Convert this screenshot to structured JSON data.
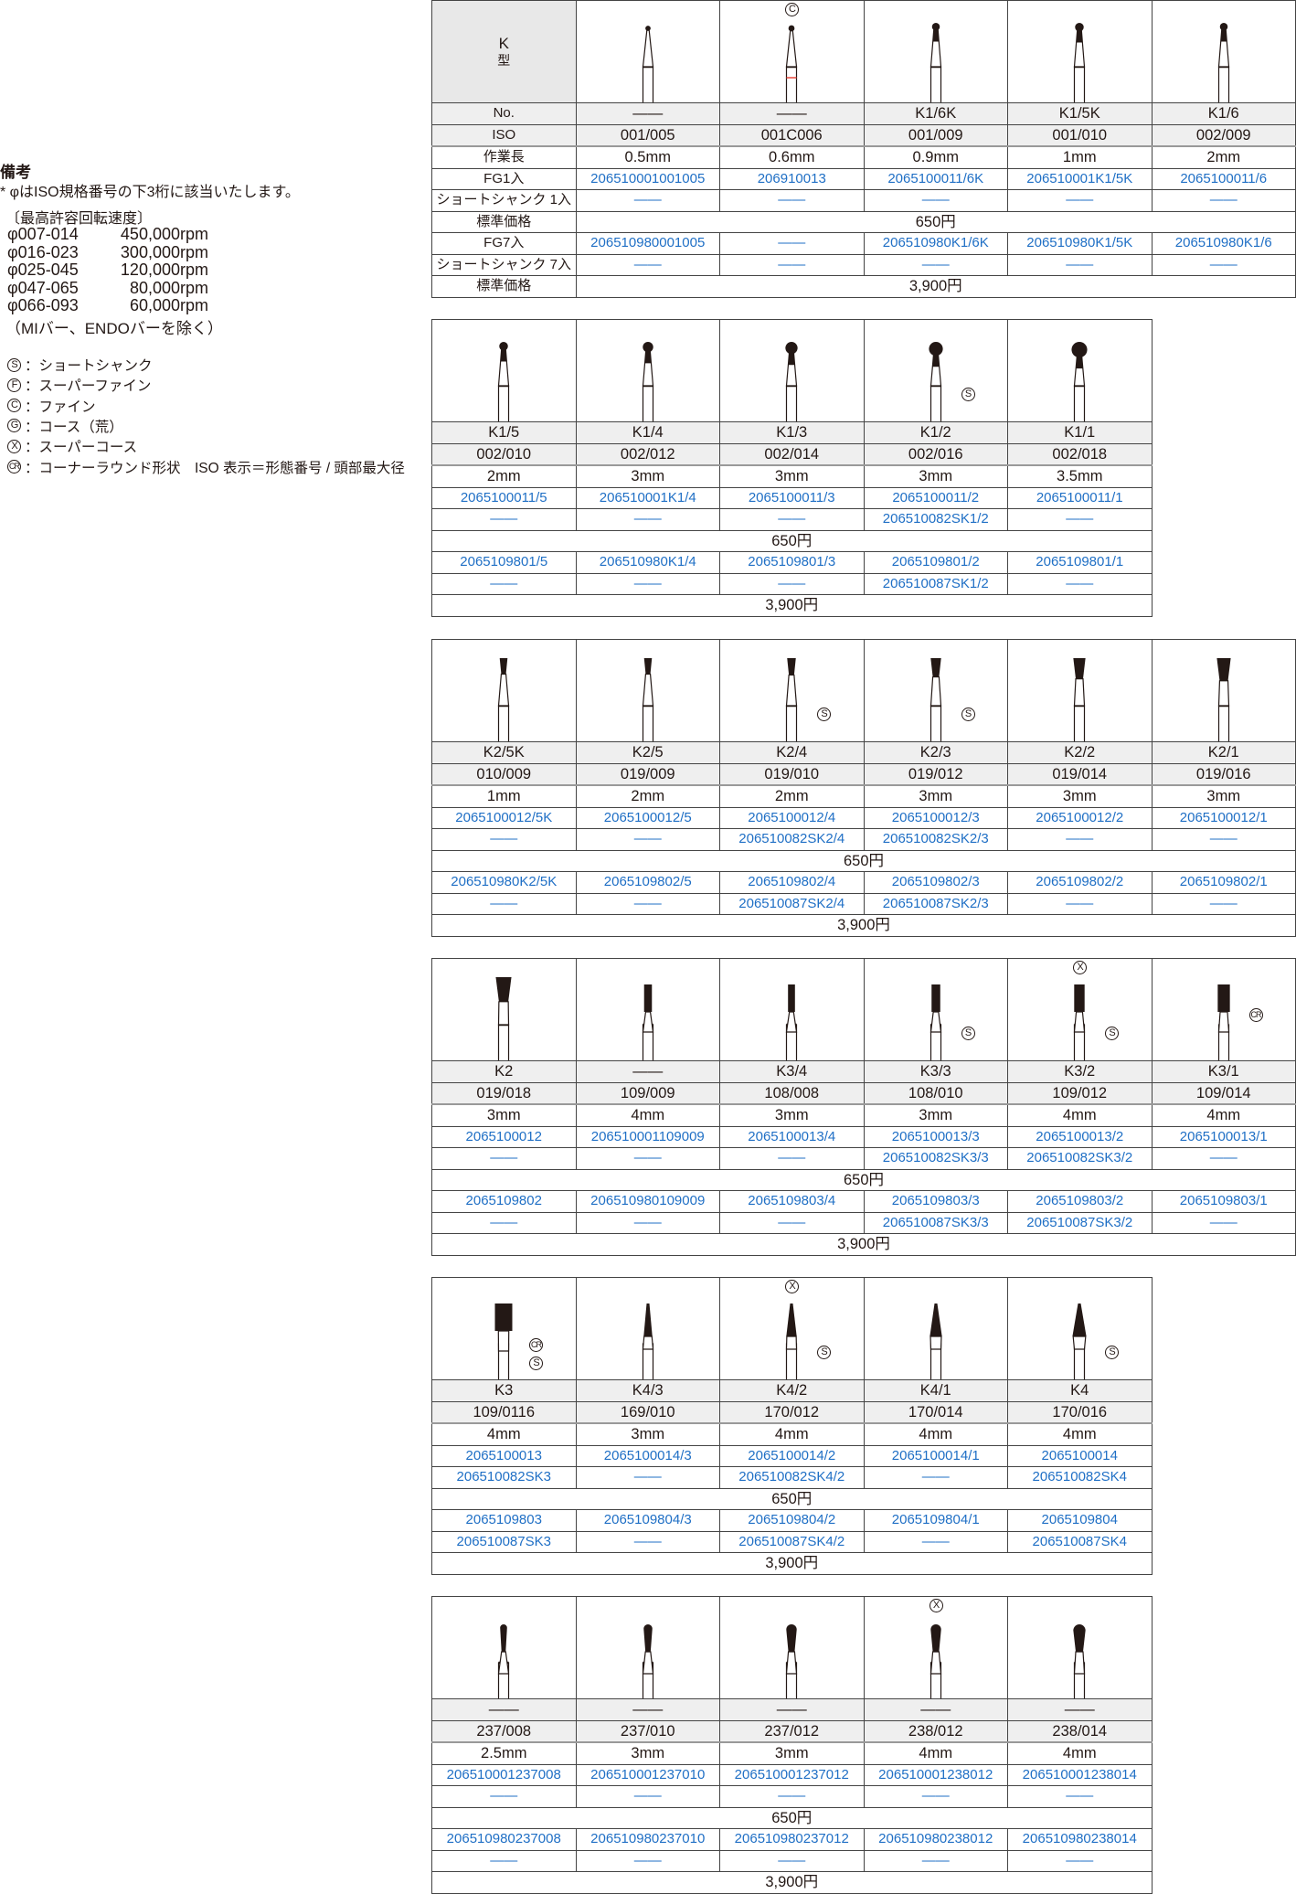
{
  "notes": {
    "title": "備考",
    "star_note": "* φはISO規格番号の下3桁に該当いたします。",
    "speed_heading": "〔最高許容回転速度〕",
    "speeds": [
      {
        "range": "φ007-014",
        "rpm": "450,000rpm"
      },
      {
        "range": "φ016-023",
        "rpm": "300,000rpm"
      },
      {
        "range": "φ025-045",
        "rpm": "120,000rpm"
      },
      {
        "range": "φ047-065",
        "rpm": "80,000rpm"
      },
      {
        "range": "φ066-093",
        "rpm": "60,000rpm"
      }
    ],
    "exclusion": "（MIバー、ENDOバーを除く）",
    "legend": [
      {
        "mark": "S",
        "text": "：ショートシャンク"
      },
      {
        "mark": "F",
        "text": "：スーパーファイン"
      },
      {
        "mark": "C",
        "text": "：ファイン"
      },
      {
        "mark": "G",
        "text": "：コース（荒）"
      },
      {
        "mark": "X",
        "text": "：スーパーコース"
      },
      {
        "mark": "CR",
        "text": "：コーナーラウンド形状　ISO 表示＝形態番号 / 頭部最大径"
      }
    ]
  },
  "colors": {
    "code_blue": "#1f6fc5",
    "header_gray": "#efefef",
    "grid": "#444444",
    "band_red": "#e8473c"
  },
  "row_labels": {
    "type_letter": "K",
    "type_suffix": "型",
    "no": "No.",
    "iso": "ISO",
    "length": "作業長",
    "fg1": "FG1入",
    "short1": "ショートシャンク 1入",
    "price1": "標準価格",
    "fg7": "FG7入",
    "short7": "ショートシャンク 7入",
    "price7": "標準価格"
  },
  "tables": [
    {
      "price1": "650円",
      "price7": "3,900円",
      "columns": [
        {
          "shape": "taper-point-bur-icon",
          "no": "——",
          "iso": "001/005",
          "length": "0.5mm",
          "fg1": "206510001001005",
          "short1": "——",
          "fg7": "206510980001005",
          "short7": "——"
        },
        {
          "shape": "taper-point-bur-icon",
          "red_band": true,
          "top_mark": "C",
          "no": "——",
          "iso": "001C006",
          "length": "0.6mm",
          "fg1": "206910013",
          "short1": "——",
          "fg7": "——",
          "short7": "——"
        },
        {
          "shape": "round-bur-icon",
          "no": "K1/6K",
          "iso": "001/009",
          "length": "0.9mm",
          "fg1": "2065100011/6K",
          "short1": "——",
          "fg7": "206510980K1/6K",
          "short7": "——"
        },
        {
          "shape": "round-bur-icon",
          "no": "K1/5K",
          "iso": "001/010",
          "length": "1mm",
          "fg1": "206510001K1/5K",
          "short1": "——",
          "fg7": "206510980K1/5K",
          "short7": "——"
        },
        {
          "shape": "round-bur-icon",
          "no": "K1/6",
          "iso": "002/009",
          "length": "2mm",
          "fg1": "2065100011/6",
          "short1": "——",
          "fg7": "206510980K1/6",
          "short7": "——"
        }
      ]
    },
    {
      "price1": "650円",
      "price7": "3,900円",
      "columns": [
        {
          "shape": "round-bur-icon",
          "no": "K1/5",
          "iso": "002/010",
          "length": "2mm",
          "fg1": "2065100011/5",
          "short1": "——",
          "fg7": "2065109801/5",
          "short7": "——"
        },
        {
          "shape": "round-bur-icon",
          "no": "K1/4",
          "iso": "002/012",
          "length": "3mm",
          "fg1": "206510001K1/4",
          "short1": "——",
          "fg7": "206510980K1/4",
          "short7": "——"
        },
        {
          "shape": "round-bur-icon",
          "no": "K1/3",
          "iso": "002/014",
          "length": "3mm",
          "fg1": "2065100011/3",
          "short1": "——",
          "fg7": "2065109801/3",
          "short7": "——"
        },
        {
          "shape": "round-bur-icon",
          "side_marks": [
            "S"
          ],
          "no": "K1/2",
          "iso": "002/016",
          "length": "3mm",
          "fg1": "2065100011/2",
          "short1": "206510082SK1/2",
          "fg7": "2065109801/2",
          "short7": "206510087SK1/2"
        },
        {
          "shape": "round-bur-icon",
          "no": "K1/1",
          "iso": "002/018",
          "length": "3.5mm",
          "fg1": "2065100011/1",
          "short1": "——",
          "fg7": "2065109801/1",
          "short7": "——"
        }
      ]
    },
    {
      "price1": "650円",
      "price7": "3,900円",
      "columns": [
        {
          "shape": "inverted-cone-bur-icon",
          "no": "K2/5K",
          "iso": "010/009",
          "length": "1mm",
          "fg1": "2065100012/5K",
          "short1": "——",
          "fg7": "206510980K2/5K",
          "short7": "——"
        },
        {
          "shape": "inverted-cone-bur-icon",
          "no": "K2/5",
          "iso": "019/009",
          "length": "2mm",
          "fg1": "2065100012/5",
          "short1": "——",
          "fg7": "2065109802/5",
          "short7": "——"
        },
        {
          "shape": "inverted-cone-bur-icon",
          "side_marks": [
            "S"
          ],
          "no": "K2/4",
          "iso": "019/010",
          "length": "2mm",
          "fg1": "2065100012/4",
          "short1": "206510082SK2/4",
          "fg7": "2065109802/4",
          "short7": "206510087SK2/4"
        },
        {
          "shape": "inverted-cone-bur-icon",
          "side_marks": [
            "S"
          ],
          "no": "K2/3",
          "iso": "019/012",
          "length": "3mm",
          "fg1": "2065100012/3",
          "short1": "206510082SK2/3",
          "fg7": "2065109802/3",
          "short7": "206510087SK2/3"
        },
        {
          "shape": "inverted-cone-bur-icon",
          "no": "K2/2",
          "iso": "019/014",
          "length": "3mm",
          "fg1": "2065100012/2",
          "short1": "——",
          "fg7": "2065109802/2",
          "short7": "——"
        },
        {
          "shape": "inverted-cone-bur-icon",
          "no": "K2/1",
          "iso": "019/016",
          "length": "3mm",
          "fg1": "2065100012/1",
          "short1": "——",
          "fg7": "2065109802/1",
          "short7": "——"
        }
      ]
    },
    {
      "price1": "650円",
      "price7": "3,900円",
      "columns": [
        {
          "shape": "inverted-cone-bur-icon",
          "no": "K2",
          "iso": "019/018",
          "length": "3mm",
          "fg1": "2065100012",
          "short1": "——",
          "fg7": "2065109802",
          "short7": "——"
        },
        {
          "shape": "cylinder-bur-icon",
          "no": "——",
          "iso": "109/009",
          "length": "4mm",
          "fg1": "206510001109009",
          "short1": "——",
          "fg7": "206510980109009",
          "short7": "——"
        },
        {
          "shape": "cylinder-bur-icon",
          "no": "K3/4",
          "iso": "108/008",
          "length": "3mm",
          "fg1": "2065100013/4",
          "short1": "——",
          "fg7": "2065109803/4",
          "short7": "——"
        },
        {
          "shape": "cylinder-bur-icon",
          "side_marks": [
            "S"
          ],
          "no": "K3/3",
          "iso": "108/010",
          "length": "3mm",
          "fg1": "2065100013/3",
          "short1": "206510082SK3/3",
          "fg7": "2065109803/3",
          "short7": "206510087SK3/3"
        },
        {
          "shape": "cylinder-bur-icon",
          "top_mark": "X",
          "side_marks": [
            "S"
          ],
          "no": "K3/2",
          "iso": "109/012",
          "length": "4mm",
          "fg1": "2065100013/2",
          "short1": "206510082SK3/2",
          "fg7": "2065109803/2",
          "short7": "206510087SK3/2"
        },
        {
          "shape": "cylinder-bur-icon",
          "side_marks": [
            "CR"
          ],
          "no": "K3/1",
          "iso": "109/014",
          "length": "4mm",
          "fg1": "2065100013/1",
          "short1": "——",
          "fg7": "2065109803/1",
          "short7": "——"
        }
      ]
    },
    {
      "price1": "650円",
      "price7": "3,900円",
      "columns": [
        {
          "shape": "cylinder-bur-icon",
          "side_marks": [
            "CR",
            "S"
          ],
          "no": "K3",
          "iso": "109/0116",
          "length": "4mm",
          "fg1": "2065100013",
          "short1": "206510082SK3",
          "fg7": "2065109803",
          "short7": "206510087SK3"
        },
        {
          "shape": "taper-bur-icon",
          "no": "K4/3",
          "iso": "169/010",
          "length": "3mm",
          "fg1": "2065100014/3",
          "short1": "——",
          "fg7": "2065109804/3",
          "short7": "——"
        },
        {
          "shape": "taper-bur-icon",
          "top_mark": "X",
          "side_marks": [
            "S"
          ],
          "no": "K4/2",
          "iso": "170/012",
          "length": "4mm",
          "fg1": "2065100014/2",
          "short1": "206510082SK4/2",
          "fg7": "2065109804/2",
          "short7": "206510087SK4/2"
        },
        {
          "shape": "taper-bur-icon",
          "no": "K4/1",
          "iso": "170/014",
          "length": "4mm",
          "fg1": "2065100014/1",
          "short1": "——",
          "fg7": "2065109804/1",
          "short7": "——"
        },
        {
          "shape": "taper-bur-icon",
          "side_marks": [
            "S"
          ],
          "no": "K4",
          "iso": "170/016",
          "length": "4mm",
          "fg1": "2065100014",
          "short1": "206510082SK4",
          "fg7": "2065109804",
          "short7": "206510087SK4"
        }
      ]
    },
    {
      "price1": "650円",
      "price7": "3,900円",
      "columns": [
        {
          "shape": "pear-bur-icon",
          "no": "——",
          "iso": "237/008",
          "length": "2.5mm",
          "fg1": "206510001237008",
          "short1": "——",
          "fg7": "206510980237008",
          "short7": "——"
        },
        {
          "shape": "pear-bur-icon",
          "no": "——",
          "iso": "237/010",
          "length": "3mm",
          "fg1": "206510001237010",
          "short1": "——",
          "fg7": "206510980237010",
          "short7": "——"
        },
        {
          "shape": "pear-bur-icon",
          "no": "——",
          "iso": "237/012",
          "length": "3mm",
          "fg1": "206510001237012",
          "short1": "——",
          "fg7": "206510980237012",
          "short7": "——"
        },
        {
          "shape": "pear-bur-icon",
          "top_mark": "X",
          "no": "——",
          "iso": "238/012",
          "length": "4mm",
          "fg1": "206510001238012",
          "short1": "——",
          "fg7": "206510980238012",
          "short7": "——"
        },
        {
          "shape": "pear-bur-icon",
          "no": "——",
          "iso": "238/014",
          "length": "4mm",
          "fg1": "206510001238014",
          "short1": "——",
          "fg7": "206510980238014",
          "short7": "——"
        }
      ]
    }
  ]
}
